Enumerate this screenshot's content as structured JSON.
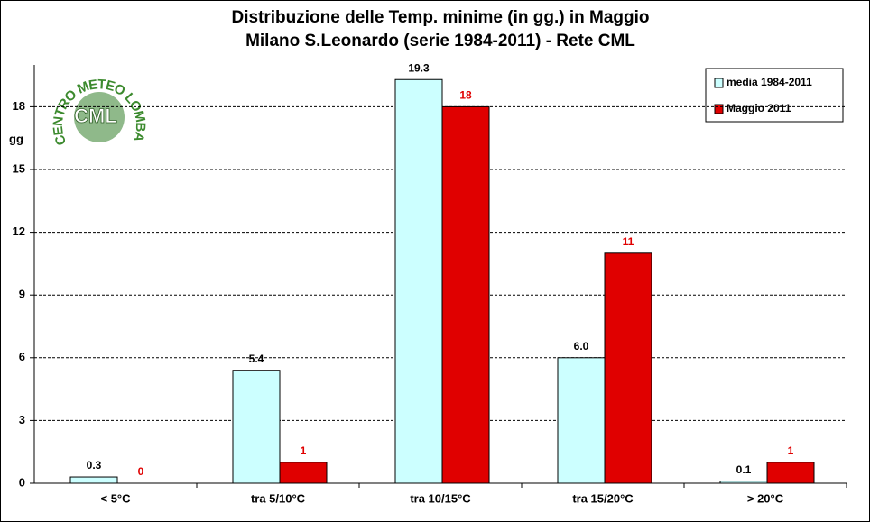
{
  "logo": {
    "ring": "CENTRO METEO LOMBARDO",
    "center": "CML"
  },
  "chart_data": {
    "type": "bar",
    "title": "Distribuzione  delle  Temp.  minime  (in  gg.)  in  Maggio",
    "subtitle": "Milano  S.Leonardo  (serie  1984-2011)  - Rete  CML",
    "y_label": "gg",
    "categories": [
      "< 5°C",
      "tra 5/10°C",
      "tra 10/15°C",
      "tra 15/20°C",
      "> 20°C"
    ],
    "series": [
      {
        "name": "media 1984-2011",
        "color": "#ccffff",
        "values": [
          0.3,
          5.4,
          19.3,
          6.0,
          0.1
        ],
        "value_labels": [
          "0.3",
          "5.4",
          "19.3",
          "6.0",
          "0.1"
        ],
        "label_color": "#000000"
      },
      {
        "name": "Maggio 2011",
        "color": "#e00000",
        "values": [
          0,
          1,
          18,
          11,
          1
        ],
        "label_color": "#e00000"
      }
    ],
    "ylim": [
      0,
      20
    ],
    "yticks": [
      0,
      3,
      6,
      9,
      12,
      15,
      18
    ],
    "grid": true
  }
}
